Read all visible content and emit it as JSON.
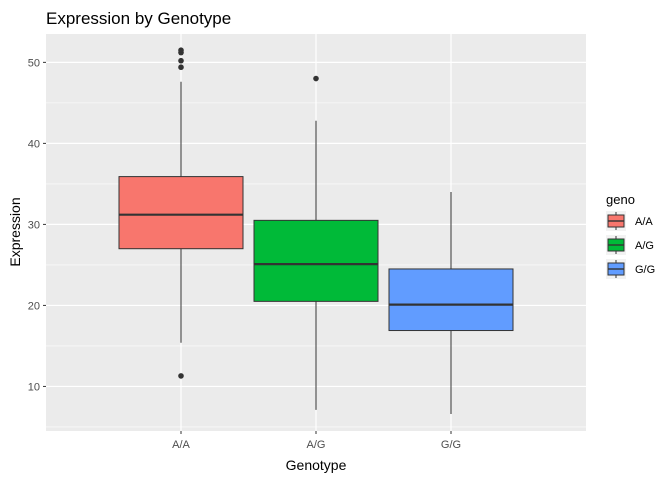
{
  "chart_data": {
    "type": "boxplot",
    "title": "Expression by Genotype",
    "xlabel": "Genotype",
    "ylabel": "Expression",
    "categories": [
      "A/A",
      "A/G",
      "G/G"
    ],
    "ylim": [
      4.5,
      53.5
    ],
    "yticks": [
      10,
      20,
      30,
      40,
      50
    ],
    "grid": true,
    "legend": {
      "title": "geno",
      "position": "right",
      "entries": [
        "A/A",
        "A/G",
        "G/G"
      ]
    },
    "colors": [
      "#F8766D",
      "#00BA38",
      "#619CFF"
    ],
    "boxes": [
      {
        "category": "A/A",
        "whisker_low": 15.4,
        "q1": 27.0,
        "median": 31.2,
        "q3": 35.9,
        "whisker_high": 47.6,
        "outliers": [
          11.3,
          49.4,
          50.2,
          51.2,
          51.5
        ]
      },
      {
        "category": "A/G",
        "whisker_low": 7.1,
        "q1": 20.5,
        "median": 25.1,
        "q3": 30.5,
        "whisker_high": 42.8,
        "outliers": [
          48.0
        ]
      },
      {
        "category": "G/G",
        "whisker_low": 6.6,
        "q1": 16.9,
        "median": 20.1,
        "q3": 24.5,
        "whisker_high": 34.0,
        "outliers": []
      }
    ]
  }
}
